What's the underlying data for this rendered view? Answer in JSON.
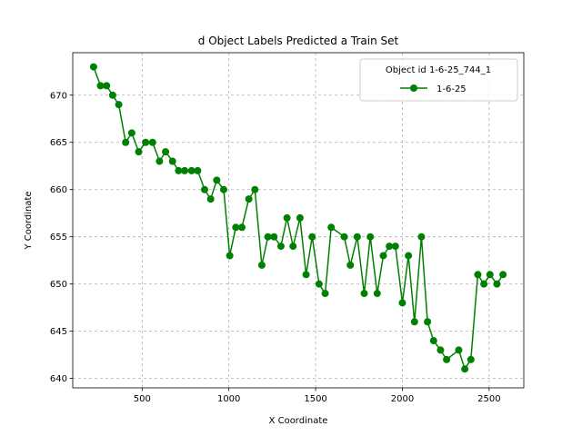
{
  "chart_data": {
    "type": "line",
    "title": "d Object Labels Predicted a Train Set",
    "xlabel": "X Coordinate",
    "ylabel": "Y Coordinate",
    "xlim": [
      100,
      2700
    ],
    "ylim": [
      639,
      674.5
    ],
    "xticks": [
      500,
      1000,
      1500,
      2000,
      2500
    ],
    "yticks": [
      640,
      645,
      650,
      655,
      660,
      665,
      670
    ],
    "grid": true,
    "legend": {
      "title": "Object id 1-6-25_744_1",
      "placement": "top-right"
    },
    "series": [
      {
        "name": "1-6-25",
        "color": "#008000",
        "marker": "circle",
        "x": [
          220,
          260,
          295,
          330,
          365,
          405,
          440,
          480,
          520,
          560,
          600,
          635,
          675,
          710,
          745,
          785,
          820,
          860,
          895,
          930,
          970,
          1005,
          1040,
          1075,
          1115,
          1150,
          1190,
          1225,
          1260,
          1300,
          1335,
          1370,
          1410,
          1445,
          1480,
          1520,
          1555,
          1590,
          1665,
          1700,
          1740,
          1780,
          1815,
          1855,
          1890,
          1925,
          1960,
          2000,
          2035,
          2070,
          2110,
          2145,
          2180,
          2220,
          2255,
          2325,
          2360,
          2395,
          2435,
          2470,
          2505,
          2545,
          2580
        ],
        "y": [
          673,
          671,
          671,
          670,
          669,
          665,
          666,
          664,
          665,
          665,
          663,
          664,
          663,
          662,
          662,
          662,
          662,
          660,
          659,
          661,
          660,
          653,
          656,
          656,
          659,
          660,
          652,
          655,
          655,
          654,
          657,
          654,
          657,
          651,
          655,
          650,
          649,
          656,
          655,
          652,
          655,
          649,
          655,
          649,
          653,
          654,
          654,
          648,
          653,
          646,
          655,
          646,
          644,
          643,
          642,
          643,
          641,
          642,
          651,
          650,
          651,
          650,
          651
        ]
      }
    ]
  }
}
